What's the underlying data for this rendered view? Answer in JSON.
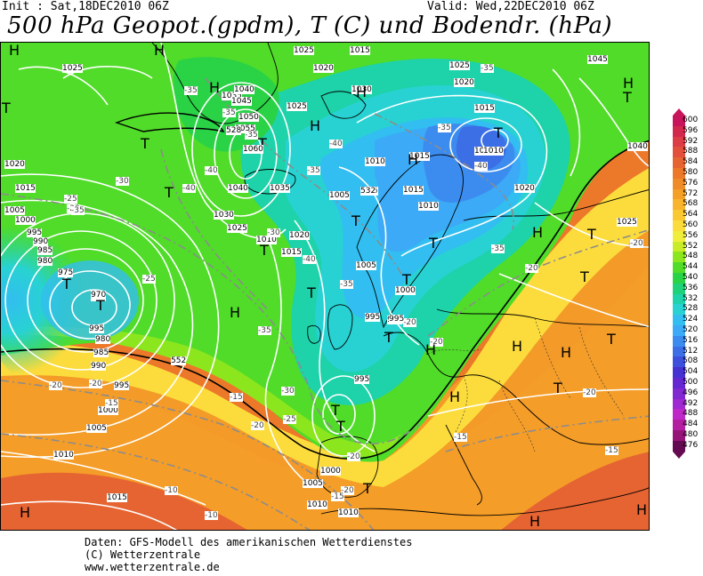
{
  "header": {
    "init": "Init : Sat,18DEC2010 06Z",
    "valid": "Valid: Wed,22DEC2010 06Z",
    "title": "500 hPa Geopot.(gpdm), T (C) und Bodendr. (hPa)"
  },
  "credits": [
    "Daten: GFS-Modell des amerikanischen Wetterdienstes",
    "(C) Wetterzentrale",
    "www.wetterzentrale.de"
  ],
  "legend": {
    "unit": "gpdm",
    "levels": [
      {
        "v": "600",
        "c": "#c8145a"
      },
      {
        "v": "596",
        "c": "#d2284e"
      },
      {
        "v": "592",
        "c": "#dc3c46"
      },
      {
        "v": "588",
        "c": "#e2503c"
      },
      {
        "v": "584",
        "c": "#e66432"
      },
      {
        "v": "580",
        "c": "#ec782a"
      },
      {
        "v": "576",
        "c": "#f08c28"
      },
      {
        "v": "572",
        "c": "#f4a028"
      },
      {
        "v": "568",
        "c": "#f8b42c"
      },
      {
        "v": "564",
        "c": "#fac832"
      },
      {
        "v": "560",
        "c": "#fcdc3c"
      },
      {
        "v": "556",
        "c": "#f0ee3c"
      },
      {
        "v": "552",
        "c": "#c8ec28"
      },
      {
        "v": "548",
        "c": "#8ce61e"
      },
      {
        "v": "544",
        "c": "#50dc28"
      },
      {
        "v": "540",
        "c": "#2ad246"
      },
      {
        "v": "536",
        "c": "#1ed27a"
      },
      {
        "v": "532",
        "c": "#1ed2aa"
      },
      {
        "v": "528",
        "c": "#28d2d2"
      },
      {
        "v": "524",
        "c": "#32bef0"
      },
      {
        "v": "520",
        "c": "#3caaf6"
      },
      {
        "v": "516",
        "c": "#3c8cf0"
      },
      {
        "v": "512",
        "c": "#3c6ee6"
      },
      {
        "v": "508",
        "c": "#3c50dc"
      },
      {
        "v": "504",
        "c": "#4632d2"
      },
      {
        "v": "500",
        "c": "#6428d2"
      },
      {
        "v": "496",
        "c": "#8228d2"
      },
      {
        "v": "492",
        "c": "#a028d2"
      },
      {
        "v": "488",
        "c": "#be28c8"
      },
      {
        "v": "484",
        "c": "#b41ea0"
      },
      {
        "v": "480",
        "c": "#961478"
      },
      {
        "v": "476",
        "c": "#640a50"
      }
    ]
  },
  "colors": {
    "coast": "#000000",
    "isobar": "#ffffff",
    "isotherm": "#8c8c8c",
    "h588": "#000000"
  },
  "pressure_centers": [
    {
      "label": "T",
      "value": "970"
    },
    {
      "label": "T",
      "value": "1010"
    },
    {
      "label": "H",
      "value": "1060"
    },
    {
      "label": "T",
      "value": "995"
    },
    {
      "label": "H",
      "value": ""
    }
  ],
  "isobar_labels": [
    "1025",
    "1020",
    "1015",
    "1005",
    "1000",
    "995",
    "990",
    "985",
    "980",
    "975",
    "970",
    "1010",
    "1035",
    "1040",
    "1045",
    "1050",
    "1055",
    "1060",
    "1030"
  ],
  "isotherm_labels": [
    "-35",
    "-40",
    "-30",
    "-25",
    "-20",
    "-15",
    "-10"
  ],
  "contour_labels": [
    "552",
    "532",
    "528"
  ]
}
